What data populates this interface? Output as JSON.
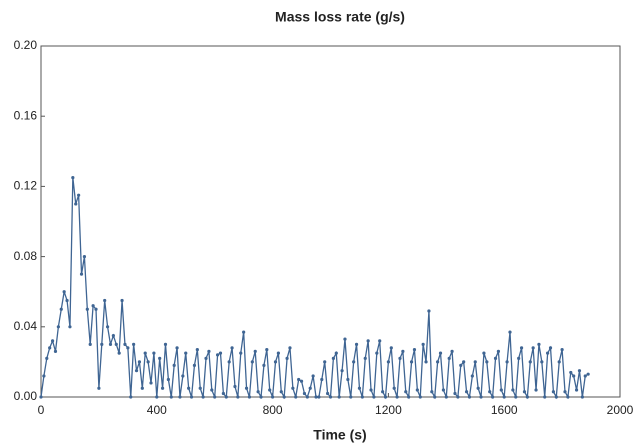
{
  "chart_data": {
    "type": "line",
    "title": "Mass loss rate (g/s)",
    "x_label": "Time (s)",
    "x": [
      0,
      10,
      20,
      30,
      40,
      50,
      60,
      70,
      80,
      90,
      100,
      110,
      120,
      130,
      140,
      150,
      160,
      170,
      180,
      190,
      200,
      210,
      220,
      230,
      240,
      250,
      260,
      270,
      280,
      290,
      300,
      310,
      320,
      330,
      340,
      350,
      360,
      370,
      380,
      390,
      400,
      410,
      420,
      430,
      440,
      450,
      460,
      470,
      480,
      490,
      500,
      510,
      520,
      530,
      540,
      550,
      560,
      570,
      580,
      590,
      600,
      610,
      620,
      630,
      640,
      650,
      660,
      670,
      680,
      690,
      700,
      710,
      720,
      730,
      740,
      750,
      760,
      770,
      780,
      790,
      800,
      810,
      820,
      830,
      840,
      850,
      860,
      870,
      880,
      890,
      900,
      910,
      920,
      930,
      940,
      950,
      960,
      970,
      980,
      990,
      1000,
      1010,
      1020,
      1030,
      1040,
      1050,
      1060,
      1070,
      1080,
      1090,
      1100,
      1110,
      1120,
      1130,
      1140,
      1150,
      1160,
      1170,
      1180,
      1190,
      1200,
      1210,
      1220,
      1230,
      1240,
      1250,
      1260,
      1270,
      1280,
      1290,
      1300,
      1310,
      1320,
      1330,
      1340,
      1350,
      1360,
      1370,
      1380,
      1390,
      1400,
      1410,
      1420,
      1430,
      1440,
      1450,
      1460,
      1470,
      1480,
      1490,
      1500,
      1510,
      1520,
      1530,
      1540,
      1550,
      1560,
      1570,
      1580,
      1590,
      1600,
      1610,
      1620,
      1630,
      1640,
      1650,
      1660,
      1670,
      1680,
      1690,
      1700,
      1710,
      1720,
      1730,
      1740,
      1750,
      1760,
      1770,
      1780,
      1790,
      1800,
      1810,
      1820,
      1830,
      1840,
      1850,
      1860,
      1870,
      1880,
      1890
    ],
    "series": [
      {
        "name": "Mass loss rate",
        "color": "#3f6593",
        "values": [
          0,
          0.012,
          0.022,
          0.028,
          0.032,
          0.026,
          0.04,
          0.05,
          0.06,
          0.055,
          0.04,
          0.125,
          0.11,
          0.115,
          0.07,
          0.08,
          0.05,
          0.03,
          0.052,
          0.05,
          0.005,
          0.03,
          0.055,
          0.04,
          0.03,
          0.035,
          0.03,
          0.025,
          0.055,
          0.03,
          0.028,
          0,
          0.03,
          0.015,
          0.02,
          0.005,
          0.025,
          0.02,
          0.008,
          0.025,
          0,
          0.022,
          0.005,
          0.03,
          0.01,
          0,
          0.018,
          0.028,
          0,
          0.012,
          0.025,
          0.005,
          0,
          0.018,
          0.027,
          0.005,
          0,
          0.022,
          0.026,
          0.004,
          0,
          0.024,
          0.025,
          0.002,
          0,
          0.02,
          0.028,
          0.006,
          0,
          0.025,
          0.037,
          0.005,
          0,
          0.02,
          0.026,
          0.003,
          0,
          0.018,
          0.027,
          0.004,
          0,
          0.02,
          0.025,
          0.003,
          0,
          0.022,
          0.028,
          0.005,
          0,
          0.01,
          0.009,
          0.002,
          0,
          0.005,
          0.012,
          0,
          0,
          0.01,
          0.02,
          0.002,
          0,
          0.022,
          0.025,
          0,
          0.015,
          0.033,
          0.01,
          0,
          0.02,
          0.03,
          0.005,
          0,
          0.022,
          0.032,
          0.004,
          0,
          0.025,
          0.032,
          0.003,
          0,
          0.02,
          0.028,
          0.005,
          0,
          0.022,
          0.026,
          0.003,
          0,
          0.02,
          0.027,
          0.004,
          0,
          0.03,
          0.02,
          0.049,
          0.003,
          0,
          0.02,
          0.025,
          0.004,
          0,
          0.022,
          0.026,
          0.002,
          0,
          0.018,
          0.02,
          0.003,
          0,
          0.012,
          0.02,
          0.005,
          0,
          0.025,
          0.02,
          0.003,
          0,
          0.022,
          0.026,
          0.004,
          0,
          0.02,
          0.037,
          0.004,
          0,
          0.022,
          0.028,
          0.003,
          0,
          0.02,
          0.028,
          0.004,
          0.03,
          0.02,
          0,
          0.025,
          0.028,
          0.003,
          0,
          0.02,
          0.027,
          0.003,
          0,
          0.014,
          0.012,
          0.004,
          0.015,
          0,
          0.012,
          0.013
        ]
      }
    ],
    "xlim": [
      0,
      2000
    ],
    "xticks": [
      0,
      400,
      800,
      1200,
      1600,
      2000
    ],
    "ylim": [
      0,
      0.2
    ],
    "yticks": [
      {
        "value": 0,
        "label": "0.00"
      },
      {
        "value": 0.04,
        "label": "0.04"
      },
      {
        "value": 0.08,
        "label": "0.08"
      },
      {
        "value": 0.12,
        "label": "0.12"
      },
      {
        "value": 0.16,
        "label": "0.16"
      },
      {
        "value": 0.2,
        "label": "0.20"
      }
    ],
    "grid": false
  }
}
